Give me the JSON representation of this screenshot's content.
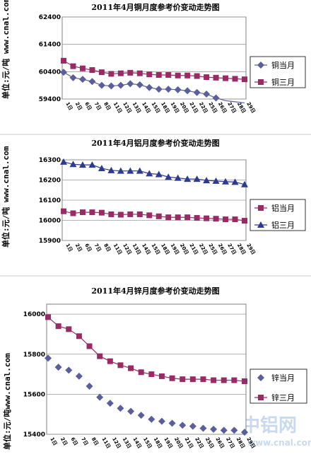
{
  "colors": {
    "series1": "#5a5e9c",
    "series2": "#9a2a63",
    "series3": "#2c3a8f",
    "gridline": "#9a9a9a",
    "axis": "#808080",
    "watermark": "#c9d9ee"
  },
  "watermark": {
    "logo": "中铝网",
    "url": "www.cnal.com"
  },
  "chart_data": [
    {
      "type": "line",
      "title": "2011年4月铜月度参考价变动走势图",
      "ylabel": "单位:元/吨 www.cnal.com",
      "ylim": [
        59400,
        62400
      ],
      "yticks": [
        62400,
        61400,
        60400,
        59400
      ],
      "categories": [
        "1日",
        "2日",
        "6日",
        "7日",
        "8日",
        "11日",
        "12日",
        "13日",
        "14日",
        "15日",
        "18日",
        "19日",
        "20日",
        "21日",
        "22日",
        "25日",
        "26日",
        "27日",
        "28日",
        "29日"
      ],
      "xticks": [
        "1日",
        "2日",
        "6日",
        "7日",
        "8日",
        "11日",
        "12日",
        "13日",
        "14日",
        "15日",
        "18日",
        "19日",
        "20日",
        "21日",
        "22日",
        "25日",
        "26日",
        "27日",
        "28日",
        "29日"
      ],
      "series": [
        {
          "name": "铜当月",
          "marker": "diamond",
          "values": [
            60380,
            60180,
            60120,
            60040,
            59900,
            59880,
            59900,
            59960,
            59920,
            59820,
            59760,
            59760,
            59740,
            59700,
            59640,
            59580,
            59440,
            59340,
            59300,
            59260
          ]
        },
        {
          "name": "铜三月",
          "marker": "square",
          "values": [
            60800,
            60600,
            60520,
            60460,
            60380,
            60320,
            60340,
            60360,
            60340,
            60300,
            60280,
            60280,
            60260,
            60260,
            60240,
            60200,
            60180,
            60160,
            60140,
            60120
          ]
        }
      ]
    },
    {
      "type": "line",
      "title": "2011年4月铝月度参考价变动走势图",
      "ylabel": "单位:元/吨 www.cnal.com",
      "ylim": [
        15900,
        16300
      ],
      "yticks": [
        16300,
        16200,
        16100,
        16000,
        15900
      ],
      "categories": [
        "1日",
        "2日",
        "6日",
        "7日",
        "8日",
        "11日",
        "12日",
        "13日",
        "14日",
        "15日",
        "18日",
        "19日",
        "20日",
        "21日",
        "22日",
        "25日",
        "26日",
        "27日",
        "28日",
        "29日"
      ],
      "xticks": [
        "1日",
        "2日",
        "6日",
        "7日",
        "8日",
        "11日",
        "12日",
        "13日",
        "14日",
        "15日",
        "18日",
        "19日",
        "20日",
        "21日",
        "22日",
        "25日",
        "26日",
        "27日",
        "28日",
        "29日"
      ],
      "series": [
        {
          "name": "铝当月",
          "marker": "square",
          "values": [
            16045,
            16035,
            16040,
            16040,
            16038,
            16030,
            16028,
            16030,
            16030,
            16025,
            16020,
            16015,
            16015,
            16015,
            16012,
            16010,
            16008,
            16005,
            16005,
            15998
          ]
        },
        {
          "name": "铝三月",
          "marker": "triangle",
          "values": [
            16290,
            16278,
            16275,
            16275,
            16258,
            16248,
            16245,
            16245,
            16245,
            16232,
            16228,
            16215,
            16210,
            16205,
            16205,
            16198,
            16195,
            16192,
            16190,
            16178
          ]
        }
      ]
    },
    {
      "type": "line",
      "title": "2011年4月锌月度参考价变动走势图",
      "ylabel": "单位:元/吨www.cnal.com",
      "ylim": [
        15400,
        16050
      ],
      "yticks": [
        16000,
        15800,
        15600,
        15400
      ],
      "categories": [
        "1日",
        "2日",
        "6日",
        "7日",
        "8日",
        "11日",
        "12日",
        "13日",
        "14日",
        "15日",
        "18日",
        "19日",
        "20日",
        "21日",
        "22日",
        "25日",
        "26日",
        "27日",
        "28日",
        "29日"
      ],
      "xticks": [
        "1日",
        "2日",
        "6日",
        "7日",
        "8日",
        "11日",
        "12日",
        "13日",
        "14日",
        "15日",
        "18日",
        "19日",
        "20日",
        "21日",
        "22日",
        "25日",
        "26日",
        "27日",
        "28日",
        "29日"
      ],
      "series": [
        {
          "name": "锌当月",
          "marker": "diamond",
          "line": false,
          "values": [
            15780,
            15735,
            15720,
            15690,
            15640,
            15585,
            15555,
            15530,
            15515,
            15495,
            15475,
            15465,
            15455,
            15445,
            15440,
            15430,
            15425,
            15420,
            15420,
            15410
          ]
        },
        {
          "name": "锌三月",
          "marker": "square",
          "values": [
            15985,
            15940,
            15925,
            15890,
            15840,
            15790,
            15765,
            15745,
            15730,
            15710,
            15700,
            15690,
            15680,
            15675,
            15675,
            15675,
            15670,
            15670,
            15670,
            15665
          ]
        }
      ]
    }
  ]
}
